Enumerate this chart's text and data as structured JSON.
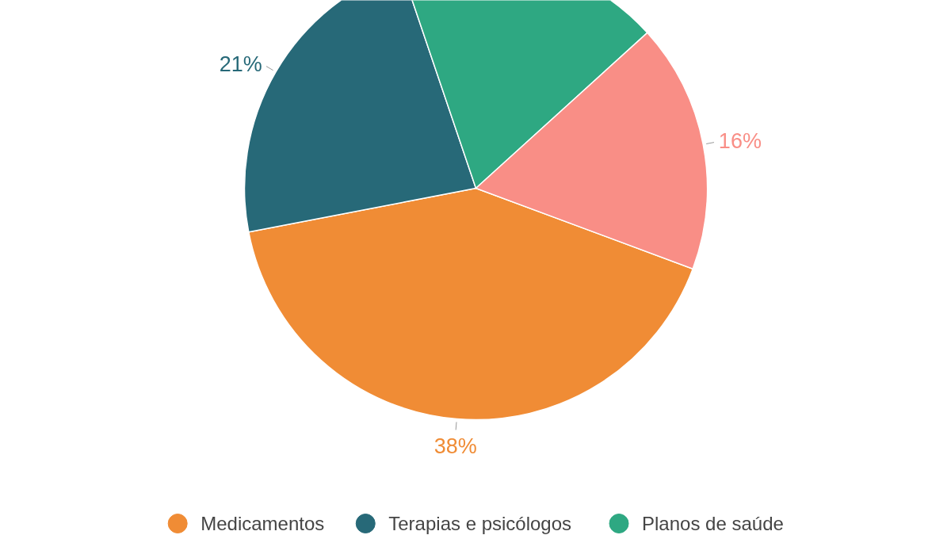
{
  "chart_data": {
    "type": "pie",
    "categories": [
      "Medicamentos",
      "Terapias e psicólogos",
      "Planos de saúde",
      null
    ],
    "values": [
      38,
      21,
      17,
      16
    ],
    "colors": [
      "#f08c35",
      "#276978",
      "#2ea882",
      "#f98e86"
    ],
    "value_labels": [
      "38%",
      "21%",
      null,
      "16%"
    ],
    "legend": "bottom"
  }
}
